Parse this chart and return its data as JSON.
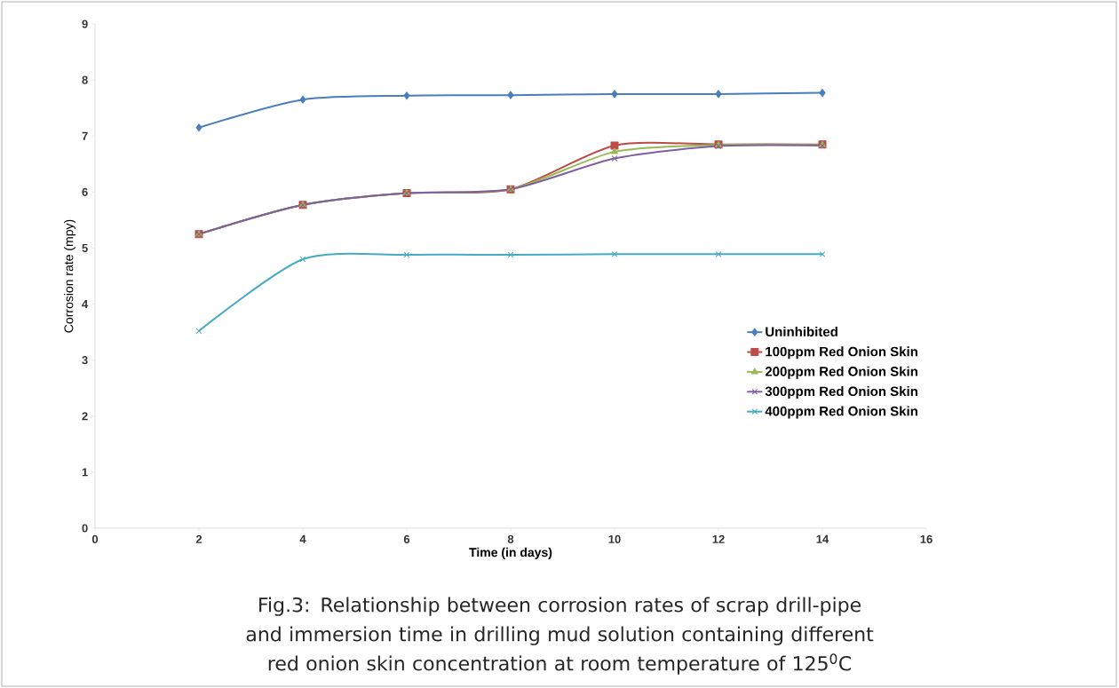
{
  "chart_data": {
    "type": "line",
    "xlabel": "Time (in days)",
    "ylabel": "Corrosion rate (mpy)",
    "x": [
      2,
      4,
      6,
      8,
      10,
      12,
      14
    ],
    "series": [
      {
        "name": "Uninhibited",
        "color": "#4a7ebb",
        "marker": "diamond",
        "values": [
          7.15,
          7.65,
          7.72,
          7.73,
          7.75,
          7.75,
          7.77
        ]
      },
      {
        "name": "100ppm Red Onion Skin",
        "color": "#be4b48",
        "marker": "square",
        "values": [
          5.25,
          5.77,
          5.98,
          6.05,
          6.83,
          6.85,
          6.85
        ]
      },
      {
        "name": "200ppm Red Onion Skin",
        "color": "#98b954",
        "marker": "triangle",
        "values": [
          5.25,
          5.77,
          5.98,
          6.05,
          6.72,
          6.84,
          6.84
        ]
      },
      {
        "name": "300ppm Red Onion Skin",
        "color": "#7d60a0",
        "marker": "cross",
        "values": [
          5.25,
          5.77,
          5.98,
          6.05,
          6.6,
          6.82,
          6.83
        ]
      },
      {
        "name": "400ppm Red Onion Skin",
        "color": "#46aac5",
        "marker": "cross",
        "values": [
          3.52,
          4.8,
          4.88,
          4.88,
          4.89,
          4.89,
          4.89
        ]
      }
    ],
    "xlim": [
      0,
      16
    ],
    "xticks": [
      0,
      2,
      4,
      6,
      8,
      10,
      12,
      14,
      16
    ],
    "ylim": [
      0,
      9
    ],
    "yticks": [
      0,
      1,
      2,
      3,
      4,
      5,
      6,
      7,
      8,
      9
    ],
    "grid": false,
    "legend": "right",
    "line_style": "solid",
    "annotations": [
      "Fig.3: Relationship between corrosion rates of scrap drill-pipe and immersion time in drilling mud solution containing different red onion skin concentration at room temperature of 125$^{0}$C"
    ]
  }
}
